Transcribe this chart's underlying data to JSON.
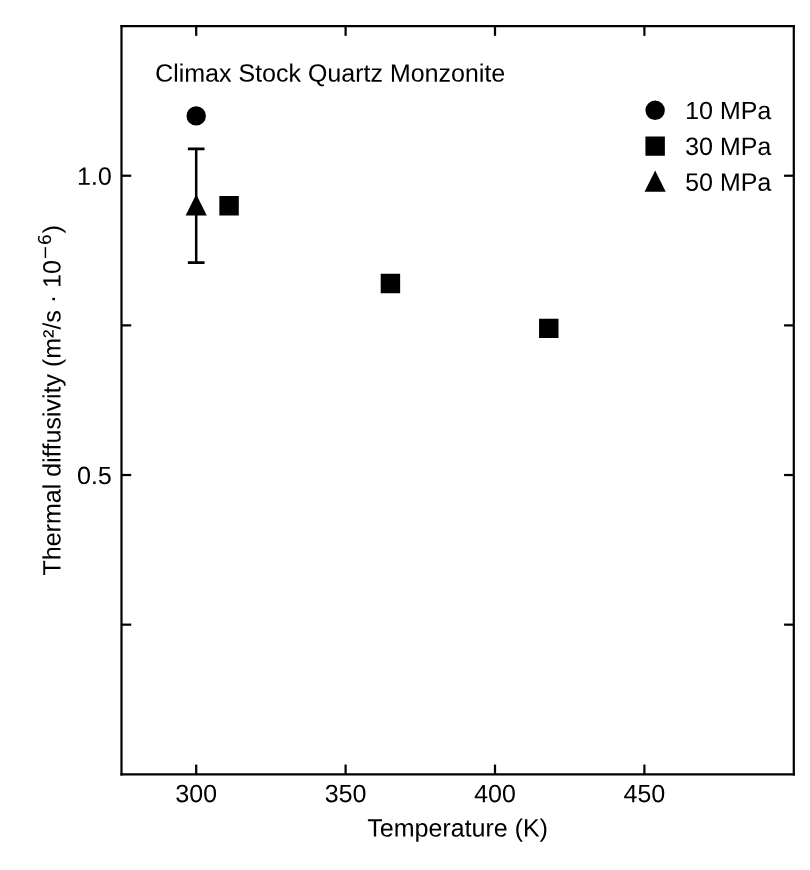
{
  "chart_data": {
    "type": "scatter",
    "xlabel": "Temperature (K)",
    "ylabel": "Thermal diffusivity (m²/s · 10$^{−6}$)",
    "annotations": [
      "Climax Stock Quartz Monzonite"
    ],
    "series": [
      {
        "name": "10 MPa",
        "color": "#000000",
        "marker": "circle",
        "x": [
          300
        ],
        "values": [
          1.1
        ]
      },
      {
        "name": "30 MPa",
        "color": "#000000",
        "marker": "square",
        "x": [
          311,
          365,
          418
        ],
        "values": [
          0.95,
          0.82,
          0.745
        ]
      },
      {
        "name": "50 MPa",
        "color": "#000000",
        "marker": "triangle",
        "x": [
          300
        ],
        "values": [
          0.95
        ],
        "errors": [
          [
            0.855,
            1.045
          ]
        ]
      }
    ],
    "xlim": [
      275,
      500
    ],
    "xticks": [
      300,
      350,
      400,
      450
    ],
    "ylim": [
      0,
      1.25
    ],
    "yticks": [
      {
        "value": 0.25,
        "label": null
      },
      {
        "value": 0.5,
        "label": "0.5"
      },
      {
        "value": 0.75,
        "label": null
      },
      {
        "value": 1.0,
        "label": "1.0"
      }
    ],
    "grid": false,
    "legend": "top right"
  }
}
